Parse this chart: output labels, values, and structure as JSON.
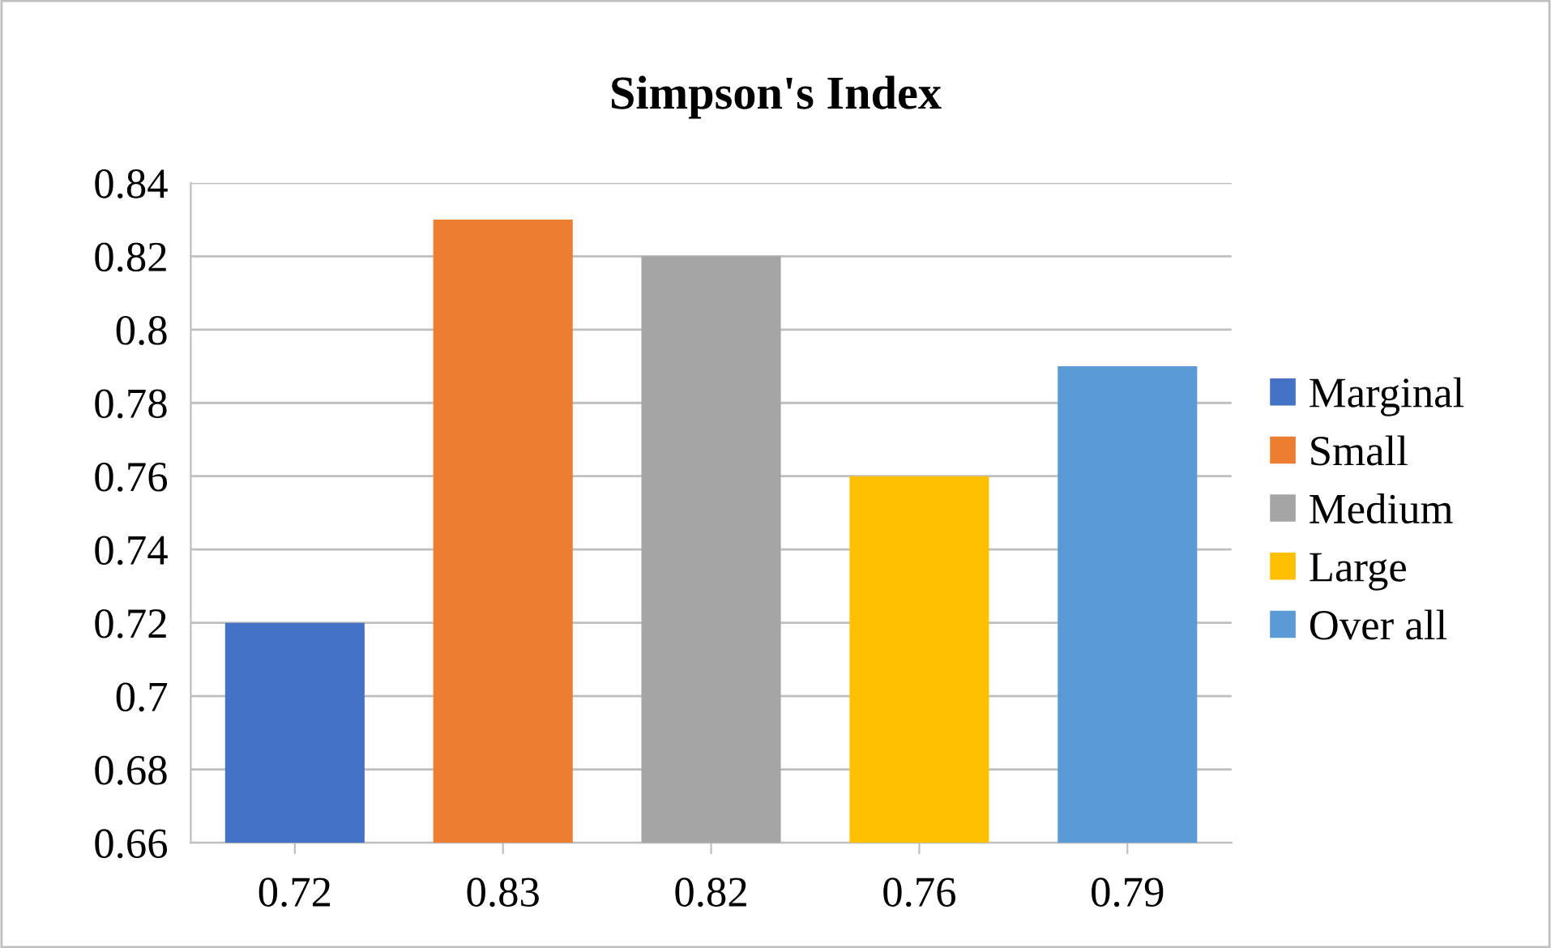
{
  "chart_data": {
    "type": "bar",
    "title": "Simpson's Index",
    "categories": [
      "0.72",
      "0.83",
      "0.82",
      "0.76",
      "0.79"
    ],
    "series": [
      {
        "name": "Marginal",
        "color": "#4472c4",
        "values": [
          0.72,
          null,
          null,
          null,
          null
        ]
      },
      {
        "name": "Small",
        "color": "#ed7d31",
        "values": [
          null,
          0.83,
          null,
          null,
          null
        ]
      },
      {
        "name": "Medium",
        "color": "#a5a5a5",
        "values": [
          null,
          null,
          0.82,
          null,
          null
        ]
      },
      {
        "name": "Large",
        "color": "#ffc000",
        "values": [
          null,
          null,
          null,
          0.76,
          null
        ]
      },
      {
        "name": "Over all",
        "color": "#5b9bd5",
        "values": [
          null,
          null,
          null,
          null,
          0.79
        ]
      }
    ],
    "stacked": true,
    "ylim": [
      0.66,
      0.84
    ],
    "yticks": [
      0.66,
      0.68,
      0.7,
      0.72,
      0.74,
      0.76,
      0.78,
      0.8,
      0.82,
      0.84
    ],
    "grid": "y",
    "legend": "right"
  }
}
